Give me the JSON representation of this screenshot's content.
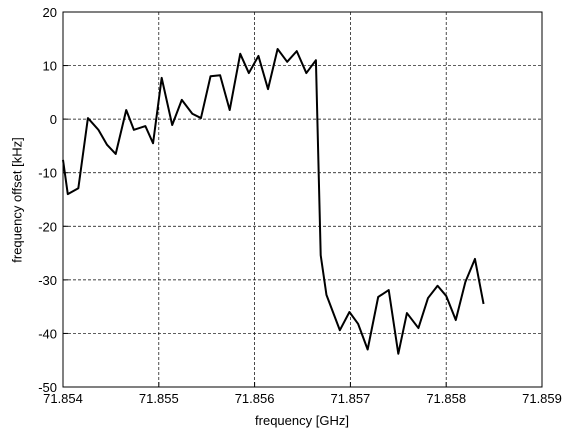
{
  "chart_data": {
    "type": "line",
    "xlabel": "frequency [GHz]",
    "ylabel": "frequency offset [kHz]",
    "x": [
      71.854,
      71.85405,
      71.85416,
      71.85426,
      71.85437,
      71.85446,
      71.85455,
      71.85466,
      71.85474,
      71.85486,
      71.85494,
      71.85503,
      71.85514,
      71.85524,
      71.85535,
      71.85544,
      71.85554,
      71.85564,
      71.85574,
      71.85585,
      71.85594,
      71.85604,
      71.85614,
      71.85624,
      71.85634,
      71.85644,
      71.85654,
      71.85664,
      71.85669,
      71.85675,
      71.85689,
      71.85699,
      71.85708,
      71.85718,
      71.85729,
      71.8574,
      71.8575,
      71.85759,
      71.85771,
      71.85781,
      71.85791,
      71.858,
      71.8581,
      71.8582,
      71.8583,
      71.85839
    ],
    "series": [
      {
        "color": "#000000",
        "values": [
          -7.6,
          -14,
          -12.9,
          0.2,
          -2,
          -4.8,
          -6.5,
          1.7,
          -2,
          -1.3,
          -4.5,
          7.7,
          -1.1,
          3.6,
          1,
          0.2,
          8,
          8.2,
          1.7,
          12.2,
          8.6,
          11.8,
          5.6,
          13.1,
          10.7,
          12.7,
          8.6,
          11,
          -25.4,
          -32.8,
          -39.4,
          -36,
          -38.2,
          -43,
          -33.2,
          -31.9,
          -43.8,
          -36.2,
          -39,
          -33.4,
          -31.1,
          -33,
          -37.5,
          -30.4,
          -26.1,
          -34.5
        ]
      }
    ],
    "xlim": [
      71.854,
      71.859
    ],
    "xticks": [
      71.854,
      71.855,
      71.856,
      71.857,
      71.858,
      71.859
    ],
    "ylim": [
      -50,
      20
    ],
    "yticks": [
      -50,
      -40,
      -30,
      -20,
      -10,
      0,
      10,
      20
    ],
    "grid": true
  }
}
